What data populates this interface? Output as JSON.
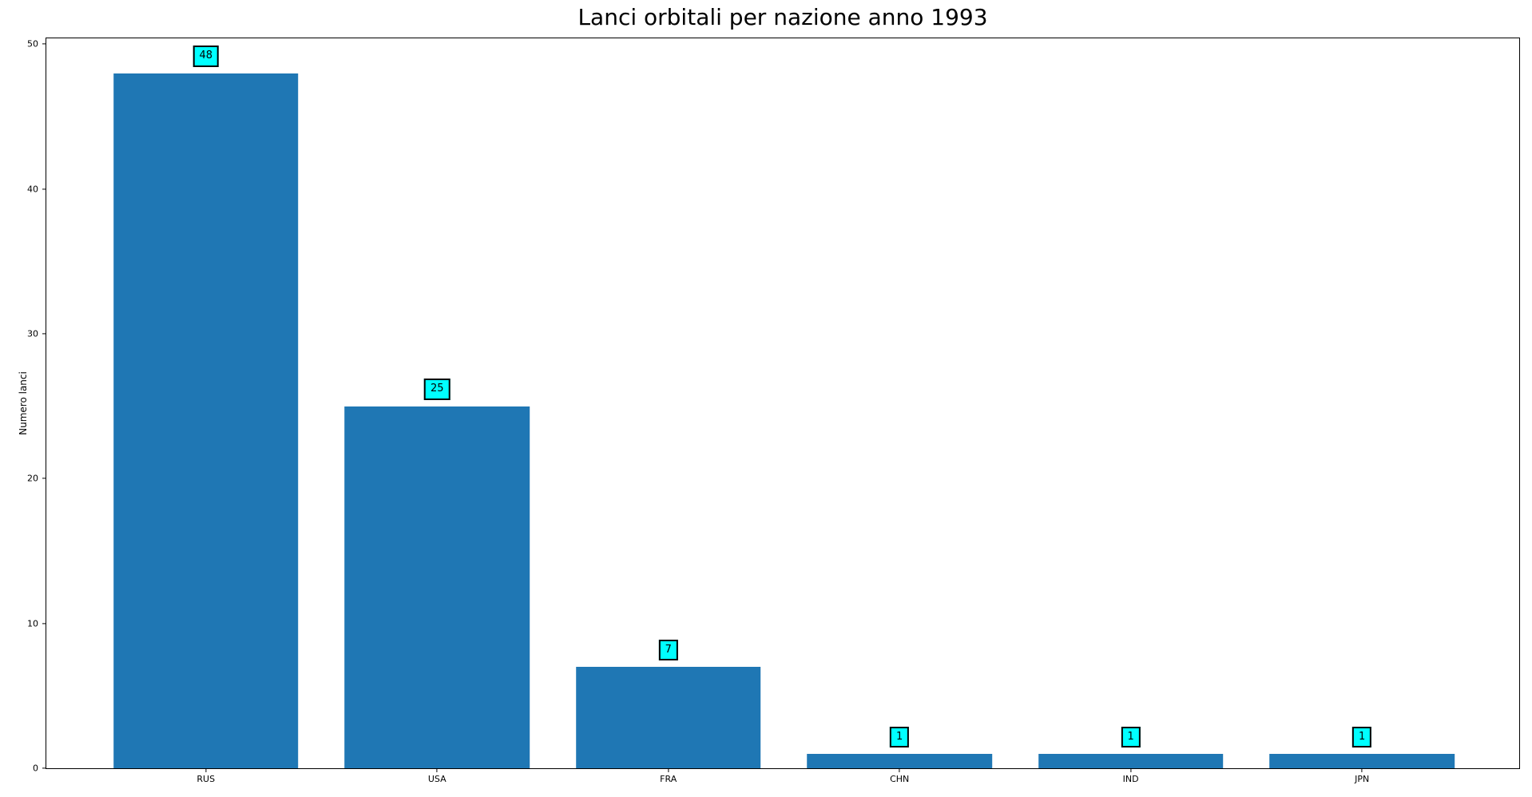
{
  "chart_data": {
    "type": "bar",
    "title": "Lanci orbitali per nazione anno 1993",
    "xlabel": "",
    "ylabel": "Numero lanci",
    "categories": [
      "RUS",
      "USA",
      "FRA",
      "CHN",
      "IND",
      "JPN"
    ],
    "values": [
      48,
      25,
      7,
      1,
      1,
      1
    ],
    "bar_value_labels": [
      "48",
      "25",
      "7",
      "1",
      "1",
      "1"
    ],
    "yticks": [
      0,
      10,
      20,
      30,
      40,
      50
    ],
    "ylim": [
      0,
      50.4
    ],
    "xlim": [
      -0.69,
      5.68
    ],
    "bar_width_units": 0.8,
    "grid": false,
    "legend": "none",
    "colors": {
      "bar": "#1f77b4",
      "annotation_fill": "#00ffff",
      "annotation_border": "#000000",
      "axis": "#000000",
      "text": "#000000",
      "background": "#ffffff"
    }
  }
}
